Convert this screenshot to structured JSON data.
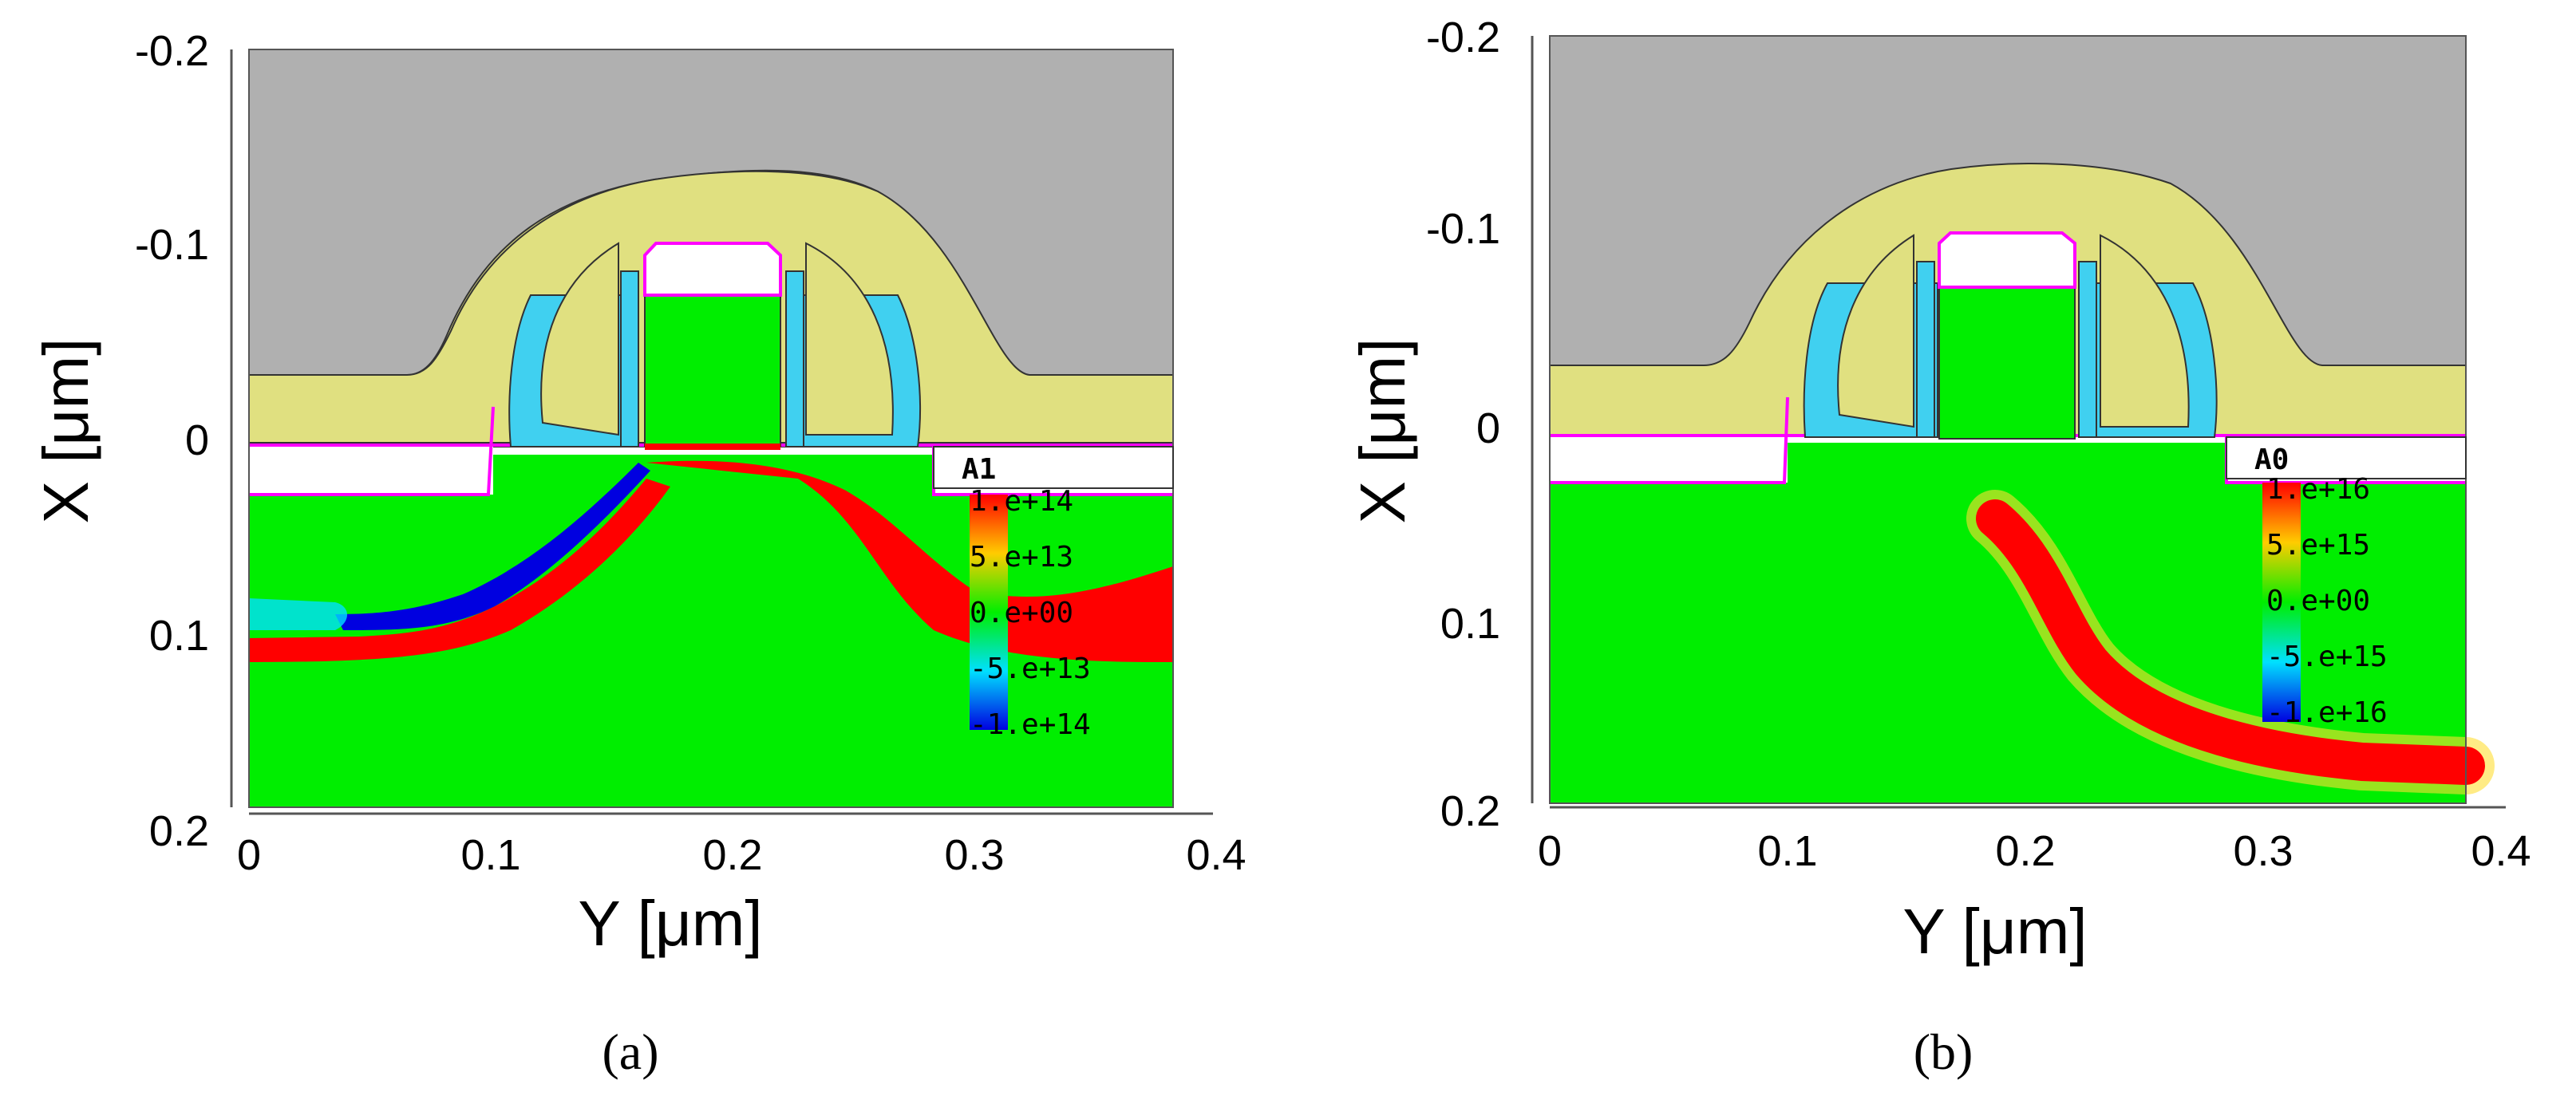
{
  "chart_data": [
    {
      "type": "heatmap",
      "caption": "(a)",
      "xlabel": "Y [μm]",
      "ylabel": "X [μm]",
      "xlim": [
        0,
        0.4
      ],
      "ylim": [
        -0.2,
        0.2
      ],
      "y_inverted": true,
      "x_ticks": [
        "0",
        "0.1",
        "0.2",
        "0.3",
        "0.4"
      ],
      "y_ticks": [
        "-0.2",
        "-0.1",
        "0",
        "0.1",
        "0.2"
      ],
      "colorbar": {
        "title": "A1",
        "labels": [
          "1.e+14",
          "5.e+13",
          "0.e+00",
          "-5.e+13",
          "-1.e+14"
        ],
        "range": [
          -100000000000000.0,
          100000000000000.0
        ]
      }
    },
    {
      "type": "heatmap",
      "caption": "(b)",
      "xlabel": "Y [μm]",
      "ylabel": "X [μm]",
      "xlim": [
        0,
        0.4
      ],
      "ylim": [
        -0.2,
        0.2
      ],
      "y_inverted": true,
      "x_ticks": [
        "0",
        "0.1",
        "0.2",
        "0.3",
        "0.4"
      ],
      "y_ticks": [
        "-0.2",
        "-0.1",
        "0",
        "0.1",
        "0.2"
      ],
      "colorbar": {
        "title": "A0",
        "labels": [
          "1.e+16",
          "5.e+15",
          "0.e+00",
          "-5.e+15",
          "-1.e+16"
        ],
        "range": [
          -1e+16,
          1e+16
        ]
      }
    }
  ],
  "colors": {
    "oxide_gray": "#b0b0b0",
    "nitride_yellow": "#e0e080",
    "spacer_cyan": "#40d0f0",
    "silicon_zero": "#00ee00",
    "positive_red": "#ff0000",
    "negative_blue": "#0000e0",
    "contact_magenta": "#ff00ff"
  }
}
